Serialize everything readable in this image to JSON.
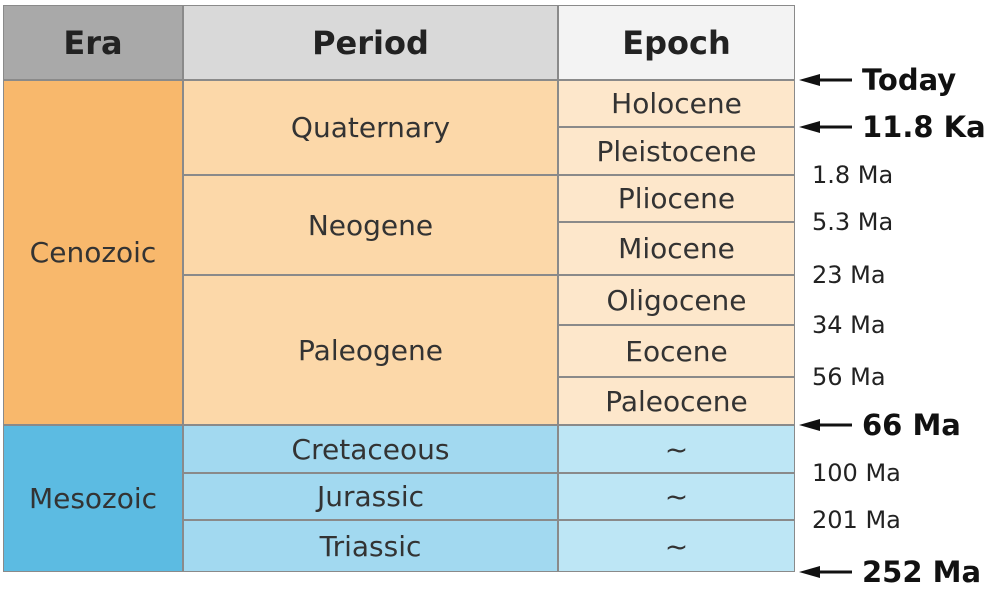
{
  "table": {
    "headers": [
      "Era",
      "Period",
      "Epoch"
    ],
    "eras": [
      {
        "name": "Cenozoic",
        "periods": [
          {
            "name": "Quaternary",
            "epochs": [
              "Holocene",
              "Pleistocene"
            ]
          },
          {
            "name": "Neogene",
            "epochs": [
              "Pliocene",
              "Miocene"
            ]
          },
          {
            "name": "Paleogene",
            "epochs": [
              "Oligocene",
              "Eocene",
              "Paleocene"
            ]
          }
        ]
      },
      {
        "name": "Mesozoic",
        "periods": [
          {
            "name": "Cretaceous",
            "epochs": [
              "~"
            ]
          },
          {
            "name": "Jurassic",
            "epochs": [
              "~"
            ]
          },
          {
            "name": "Triassic",
            "epochs": [
              "~"
            ]
          }
        ]
      }
    ]
  },
  "boundaries": [
    {
      "label": "Today",
      "arrow": true
    },
    {
      "label": "11.8 Ka",
      "arrow": true
    },
    {
      "label": "1.8 Ma",
      "arrow": false
    },
    {
      "label": "5.3 Ma",
      "arrow": false
    },
    {
      "label": "23 Ma",
      "arrow": false
    },
    {
      "label": "34 Ma",
      "arrow": false
    },
    {
      "label": "56 Ma",
      "arrow": false
    },
    {
      "label": "66 Ma",
      "arrow": true
    },
    {
      "label": "100 Ma",
      "arrow": false
    },
    {
      "label": "201 Ma",
      "arrow": false
    },
    {
      "label": "252 Ma",
      "arrow": true
    }
  ]
}
